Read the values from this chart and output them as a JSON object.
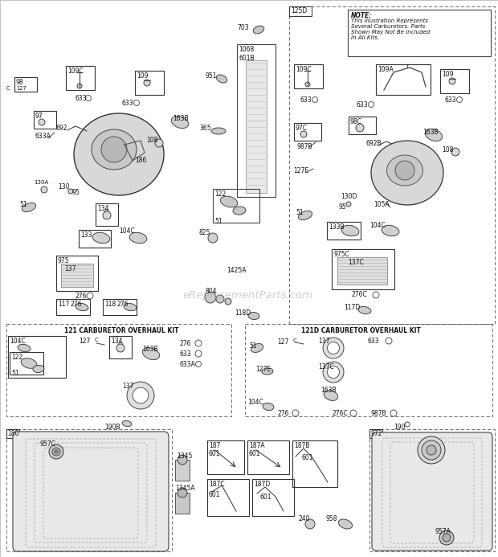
{
  "bg_color": "#ffffff",
  "watermark": "eReplacementParts.com",
  "note_text": "NOTE: This Illustration Represents\nSeveral Carburetors. Parts\nShown May Not Be Included\nIn All Kits.",
  "kit121_title": "121 CARBURETOR OVERHAUL KIT",
  "kit121D_title": "121D CARBURETOR OVERHAUL KIT",
  "section_125D": "125D"
}
